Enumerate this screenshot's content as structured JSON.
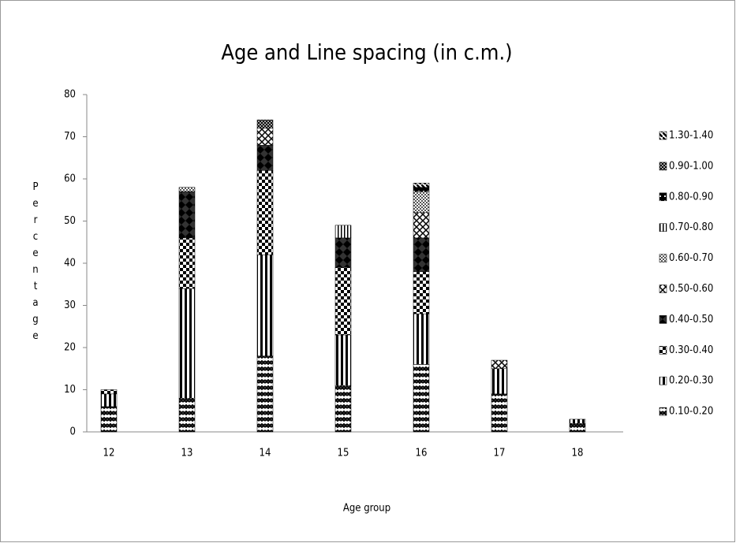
{
  "chart_data": {
    "type": "bar",
    "stacked": true,
    "title": "Age and Line spacing (in c.m.)",
    "x_label": "Age group",
    "y_label": "Percentage",
    "categories": [
      "12",
      "13",
      "14",
      "15",
      "16",
      "17",
      "18"
    ],
    "series": [
      {
        "name": "0.10-0.20",
        "color": "#000000",
        "values": [
          6,
          8,
          18,
          11,
          16,
          9,
          2
        ]
      },
      {
        "name": "0.20-0.30",
        "color": "#000000",
        "values": [
          3,
          26,
          24,
          12,
          12,
          6,
          1
        ]
      },
      {
        "name": "0.30-0.40",
        "color": "#000000",
        "values": [
          1,
          12,
          20,
          16,
          10,
          0,
          0
        ]
      },
      {
        "name": "0.40-0.50",
        "color": "#000000",
        "values": [
          0,
          11,
          6,
          7,
          8,
          0,
          0
        ]
      },
      {
        "name": "0.50-0.60",
        "color": "#000000",
        "values": [
          0,
          0,
          4,
          0,
          6,
          2,
          0
        ]
      },
      {
        "name": "0.60-0.70",
        "color": "#000000",
        "values": [
          0,
          1,
          0,
          0,
          5,
          0,
          0
        ]
      },
      {
        "name": "0.70-0.80",
        "color": "#000000",
        "values": [
          0,
          0,
          0,
          3,
          0,
          0,
          0
        ]
      },
      {
        "name": "0.80-0.90",
        "color": "#000000",
        "values": [
          0,
          0,
          0,
          0,
          1,
          0,
          0
        ]
      },
      {
        "name": "0.90-1.00",
        "color": "#000000",
        "values": [
          0,
          0,
          2,
          0,
          0,
          0,
          0
        ]
      },
      {
        "name": "1.30-1.40",
        "color": "#000000",
        "values": [
          0,
          0,
          0,
          0,
          1,
          0,
          0
        ]
      }
    ],
    "ylim": [
      0,
      80
    ],
    "yticks": [
      0,
      10,
      20,
      30,
      40,
      50,
      60,
      70,
      80
    ],
    "legend": "right"
  }
}
